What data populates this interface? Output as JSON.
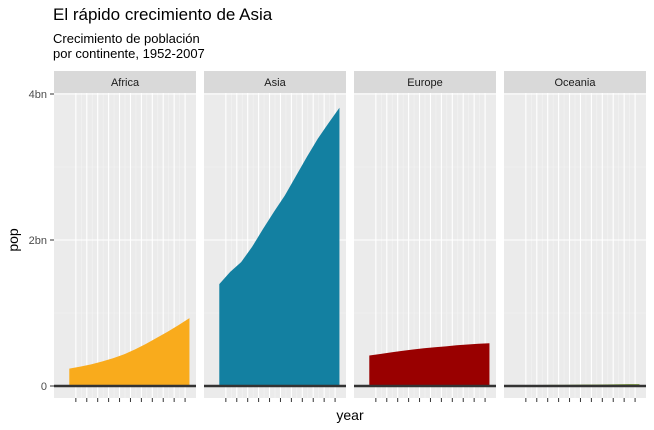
{
  "chart_data": {
    "type": "area",
    "title": "El rápido crecimiento de Asia",
    "subtitle_lines": [
      "Crecimiento de población",
      "por continente, 1952-2007"
    ],
    "xlabel": "year",
    "ylabel": "pop",
    "ylim": [
      0,
      4000000000
    ],
    "y_ticks": [
      {
        "value": 0,
        "label": "0"
      },
      {
        "value": 2000000000,
        "label": "2bn"
      },
      {
        "value": 4000000000,
        "label": "4bn"
      }
    ],
    "x_ticks": [
      1955,
      1960,
      1965,
      1970,
      1975,
      1980,
      1985,
      1990,
      1995,
      2000,
      2005
    ],
    "x_tick_labels_shown": false,
    "xlim": [
      1945,
      2010
    ],
    "grid": true,
    "facets": [
      {
        "name": "Africa",
        "color": "#f9ab1c",
        "x": [
          1952,
          1957,
          1962,
          1967,
          1972,
          1977,
          1982,
          1987,
          1992,
          1997,
          2002,
          2007
        ],
        "values": [
          237640501,
          264837738,
          296516865,
          335289489,
          379879541,
          433061021,
          499348587,
          574834110,
          659081517,
          743832984,
          833723916,
          929539692
        ]
      },
      {
        "name": "Asia",
        "color": "#1380a1",
        "x": [
          1952,
          1957,
          1962,
          1967,
          1972,
          1977,
          1982,
          1987,
          1992,
          1997,
          2002,
          2007
        ],
        "values": [
          1395357352,
          1562780599,
          1696357182,
          1905662900,
          2150972248,
          2384513556,
          2610135582,
          2871220762,
          3133292191,
          3383285500,
          3601802203,
          3811953827
        ]
      },
      {
        "name": "Europe",
        "color": "#990000",
        "x": [
          1952,
          1957,
          1962,
          1967,
          1972,
          1977,
          1982,
          1987,
          1992,
          1997,
          2002,
          2007
        ],
        "values": [
          418120846,
          437890351,
          460355155,
          481178958,
          500635059,
          517164531,
          531266901,
          543094160,
          558142797,
          568944148,
          578223869,
          586098529
        ]
      },
      {
        "name": "Oceania",
        "color": "#588300",
        "x": [
          1952,
          1957,
          1962,
          1967,
          1972,
          1977,
          1982,
          1987,
          1992,
          1997,
          2002,
          2007
        ],
        "values": [
          10686006,
          11941976,
          13283518,
          14600414,
          16106786,
          17239000,
          18394850,
          19574415,
          20919651,
          22241430,
          23454829,
          24549947
        ]
      }
    ],
    "baseline_value": 0,
    "colors": {
      "panel_bg": "#ebebeb",
      "grid_major": "#ffffff",
      "strip_bg": "#d9d9d9",
      "baseline": "#333333"
    }
  }
}
